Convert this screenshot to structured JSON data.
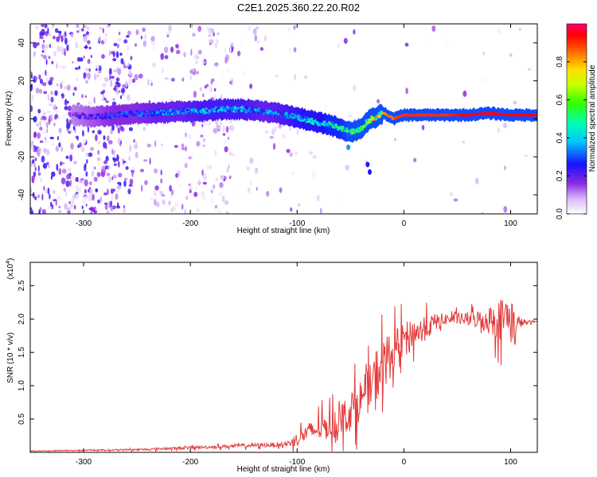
{
  "title": "C2E1.2025.360.22.20.R02",
  "colors": {
    "snr_line": "#e33b3b",
    "frame": "#000000"
  },
  "chart_data": [
    {
      "type": "heatmap",
      "xlabel": "Height of straight line (km)",
      "ylabel": "Frequency (Hz)",
      "xlim": [
        -350,
        125
      ],
      "ylim": [
        -50,
        50
      ],
      "xticks": [
        -300,
        -200,
        -100,
        0,
        100
      ],
      "yticks": [
        -40,
        -20,
        0,
        20,
        40
      ],
      "colorbar": {
        "label": "Normalized spectral amplitude",
        "range": [
          0,
          1
        ],
        "ticks": [
          "0.0",
          "0.2",
          "0.4",
          "0.6",
          "0.8"
        ],
        "tick_values": [
          0.0,
          0.2,
          0.4,
          0.6,
          0.8
        ]
      },
      "signal_trace": {
        "x": [
          -310,
          -290,
          -270,
          -250,
          -230,
          -210,
          -190,
          -170,
          -150,
          -130,
          -110,
          -95,
          -80,
          -70,
          -60,
          -50,
          -45,
          -40,
          -35,
          -30,
          -25,
          -20,
          -15,
          -10,
          -5,
          0,
          10,
          20,
          40,
          60,
          80,
          100,
          125
        ],
        "y": [
          2,
          1,
          2,
          3,
          3,
          4,
          4,
          5,
          5,
          4,
          2,
          0,
          -2,
          -3,
          -5,
          -7,
          -6,
          -5,
          -2,
          0,
          1,
          3,
          2,
          0,
          1,
          2,
          2,
          2,
          2,
          2,
          3,
          2,
          2
        ],
        "amplitude": [
          0.2,
          0.25,
          0.3,
          0.3,
          0.35,
          0.35,
          0.4,
          0.4,
          0.4,
          0.35,
          0.4,
          0.45,
          0.45,
          0.5,
          0.5,
          0.55,
          0.6,
          0.6,
          0.65,
          0.7,
          0.75,
          0.8,
          0.85,
          0.85,
          0.9,
          0.9,
          0.9,
          0.9,
          0.9,
          0.95,
          0.95,
          0.95,
          0.95
        ]
      },
      "outliers": [
        {
          "x": -52,
          "y": -15,
          "amplitude": 0.15
        },
        {
          "x": -34,
          "y": -24,
          "amplitude": 0.05
        },
        {
          "x": -32,
          "y": -28,
          "amplitude": 0.05
        }
      ]
    },
    {
      "type": "line",
      "xlabel": "Height of straight line (km)",
      "ylabel": "SNR (10 * v/v)",
      "scale_label": "(x10",
      "scale_exp": "4",
      "scale_close": ")",
      "xlim": [
        -350,
        125
      ],
      "ylim": [
        0,
        2.85
      ],
      "xticks": [
        -300,
        -200,
        -100,
        0,
        100
      ],
      "yticks": [
        0.5,
        1.0,
        1.5,
        2.0,
        2.5
      ],
      "series": [
        {
          "x": [
            -350,
            -300,
            -250,
            -200,
            -150,
            -110,
            -100,
            -90,
            -80,
            -70,
            -60,
            -50,
            -40,
            -30,
            -25,
            -20,
            -15,
            -10,
            -5,
            0,
            10,
            20,
            30,
            40,
            50,
            60,
            70,
            80,
            90,
            100,
            103,
            105,
            110,
            115,
            120,
            125
          ],
          "values": [
            0.02,
            0.03,
            0.04,
            0.07,
            0.1,
            0.12,
            0.2,
            0.3,
            0.35,
            0.4,
            0.5,
            0.6,
            0.8,
            1.0,
            1.2,
            1.3,
            1.4,
            1.5,
            1.6,
            1.7,
            1.8,
            1.85,
            1.95,
            2.0,
            2.0,
            2.0,
            2.0,
            1.98,
            2.0,
            2.05,
            1.8,
            1.9,
            1.95,
            1.95,
            1.95,
            1.97
          ],
          "noise_amplitude": [
            0.01,
            0.01,
            0.02,
            0.03,
            0.04,
            0.05,
            0.15,
            0.2,
            0.25,
            0.3,
            0.35,
            0.4,
            0.45,
            0.5,
            0.6,
            0.55,
            0.5,
            0.45,
            0.4,
            0.35,
            0.3,
            0.25,
            0.2,
            0.12,
            0.12,
            0.15,
            0.2,
            0.3,
            0.45,
            0.55,
            0.6,
            0.3,
            0.1,
            0.05,
            0.04,
            0.03
          ]
        }
      ]
    }
  ]
}
